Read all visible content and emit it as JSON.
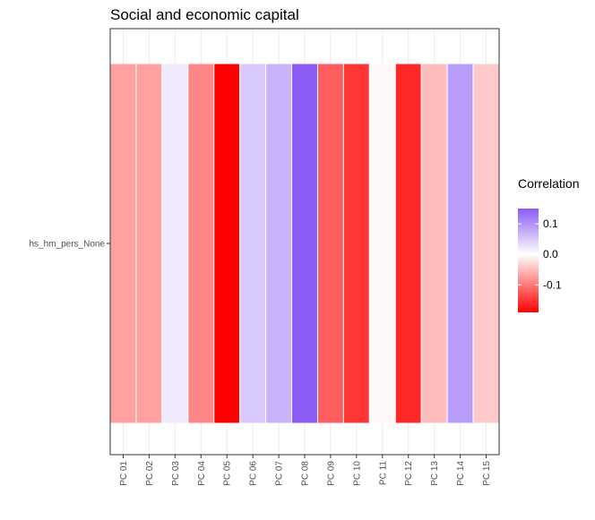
{
  "chart_data": {
    "type": "heatmap",
    "title": "Social and economic capital",
    "xlabel": "",
    "ylabel": "",
    "x_categories": [
      "PC 01",
      "PC 02",
      "PC 03",
      "PC 04",
      "PC 05",
      "PC 06",
      "PC 07",
      "PC 08",
      "PC 09",
      "PC 10",
      "PC 11",
      "PC 12",
      "PC 13",
      "PC 14",
      "PC 15"
    ],
    "y_categories": [
      "hs_hm_pers_None"
    ],
    "values": [
      [
        -0.07,
        -0.07,
        0.02,
        -0.09,
        -0.19,
        0.05,
        0.07,
        0.15,
        -0.12,
        -0.15,
        -0.005,
        -0.16,
        -0.05,
        0.09,
        -0.04
      ]
    ],
    "legend": {
      "title": "Correlation",
      "ticks": [
        0.1,
        0.0,
        -0.1
      ],
      "tick_labels": [
        "0.1",
        "0.0",
        "-0.1"
      ],
      "min": -0.19,
      "max": 0.15,
      "low_color": "#ff0000",
      "mid_color": "#ffffff",
      "high_color": "#8b5cf6",
      "placement": "right"
    },
    "grid": true,
    "panel_border": true
  }
}
